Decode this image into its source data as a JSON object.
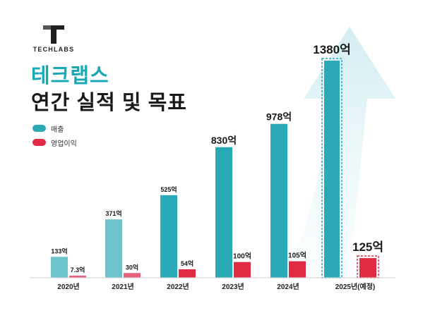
{
  "brand": {
    "name": "TECHLABS",
    "logo_icon": "t-letter-logo-icon"
  },
  "heading": {
    "line1": "테크랩스",
    "line2": "연간 실적 및 목표"
  },
  "colors": {
    "revenue": "#2aa9b6",
    "profit": "#e12a44",
    "revenue_light": "#6dc3cc",
    "profit_light": "#e8617a",
    "accent_title": "#1aa7b5"
  },
  "chart_data": {
    "type": "bar",
    "categories": [
      "2020년",
      "2021년",
      "2022년",
      "2023년",
      "2024년",
      "2025년(예정)"
    ],
    "series": [
      {
        "name": "매출",
        "values": [
          133,
          371,
          525,
          830,
          978,
          1380
        ],
        "labels": [
          "133억",
          "371억",
          "525억",
          "830억",
          "978억",
          "1380억"
        ]
      },
      {
        "name": "영업이익",
        "values": [
          7.3,
          30,
          54,
          100,
          105,
          125
        ],
        "labels": [
          "7.3억",
          "30억",
          "54억",
          "100억",
          "105억",
          "125억"
        ]
      }
    ],
    "ylim": [
      0,
      1380
    ],
    "grid": false,
    "legend": "top-left",
    "annotations": [
      "upward growth arrow behind 2025 bars",
      "2025 values shown as dashed-outline projected bars"
    ]
  }
}
